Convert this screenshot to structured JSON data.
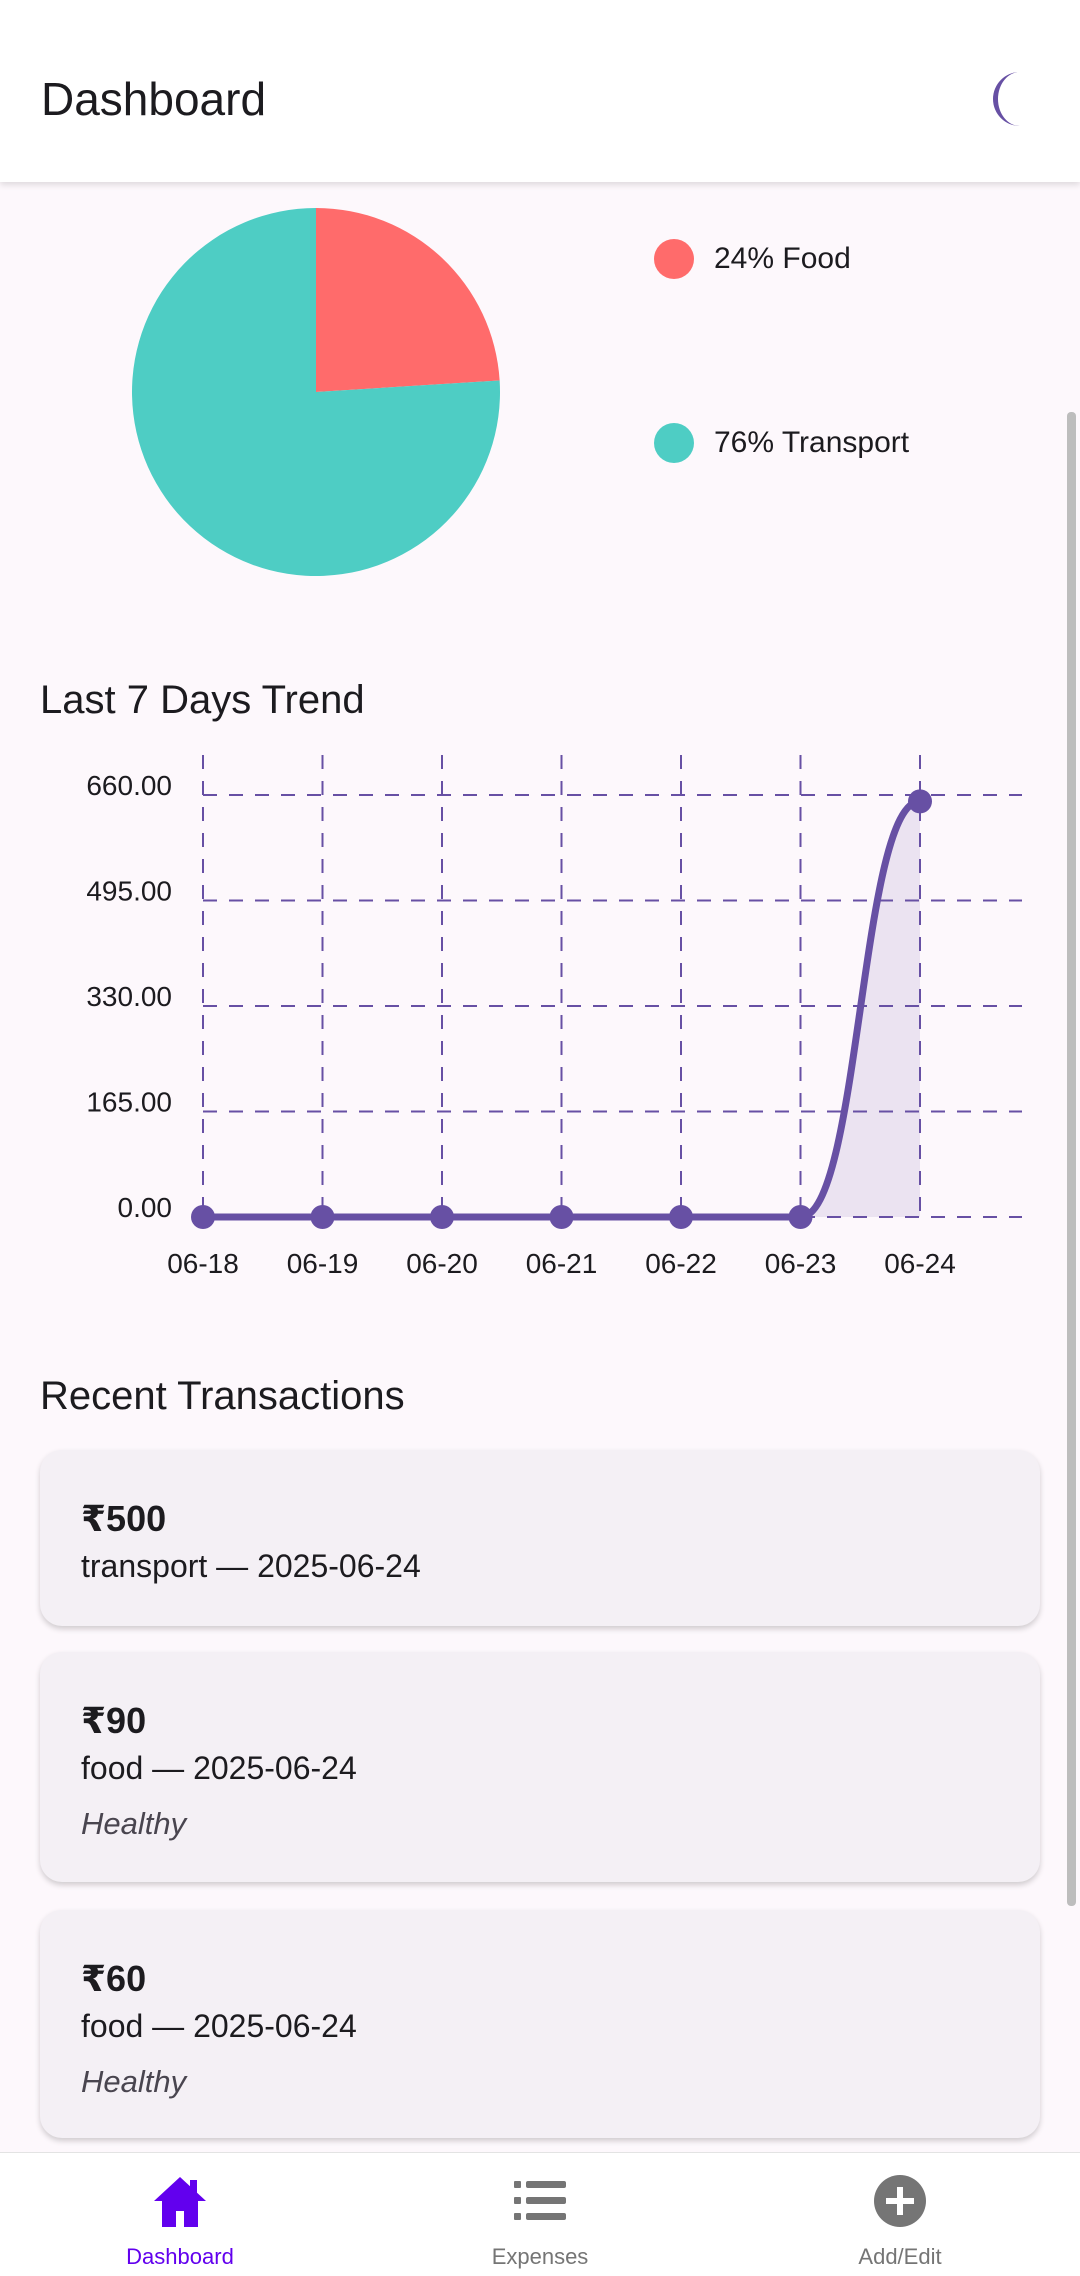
{
  "header": {
    "title": "Dashboard",
    "theme_toggle_icon": "moon-icon"
  },
  "category_breakdown": {
    "legend": [
      {
        "label": "24% Food",
        "color": "#ff6b6b"
      },
      {
        "label": "76% Transport",
        "color": "#4ecdc4"
      }
    ]
  },
  "chart_data": [
    {
      "type": "pie",
      "slices": [
        {
          "name": "Food",
          "value": 24,
          "color": "#ff6b6b"
        },
        {
          "name": "Transport",
          "value": 76,
          "color": "#4ecdc4"
        }
      ]
    },
    {
      "type": "line",
      "title": "Last 7 Days Trend",
      "categories": [
        "06-18",
        "06-19",
        "06-20",
        "06-21",
        "06-22",
        "06-23",
        "06-24"
      ],
      "values": [
        0,
        0,
        0,
        0,
        0,
        0,
        650
      ],
      "y_ticks": [
        "0.00",
        "165.00",
        "330.00",
        "495.00",
        "660.00"
      ],
      "ylim": [
        0,
        660
      ],
      "grid": true,
      "line_color": "#6750a4"
    }
  ],
  "trend": {
    "title": "Last 7 Days Trend"
  },
  "recent": {
    "title": "Recent Transactions",
    "items": [
      {
        "amount": "₹500",
        "meta": "transport — 2025-06-24",
        "note": ""
      },
      {
        "amount": "₹90",
        "meta": "food — 2025-06-24",
        "note": "Healthy"
      },
      {
        "amount": "₹60",
        "meta": "food — 2025-06-24",
        "note": "Healthy"
      }
    ]
  },
  "nav": {
    "items": [
      {
        "label": "Dashboard",
        "icon": "home-icon",
        "active": true
      },
      {
        "label": "Expenses",
        "icon": "list-icon",
        "active": false
      },
      {
        "label": "Add/Edit",
        "icon": "add-circle-icon",
        "active": false
      }
    ],
    "active_color": "#6200ee",
    "inactive_color": "#757575"
  }
}
